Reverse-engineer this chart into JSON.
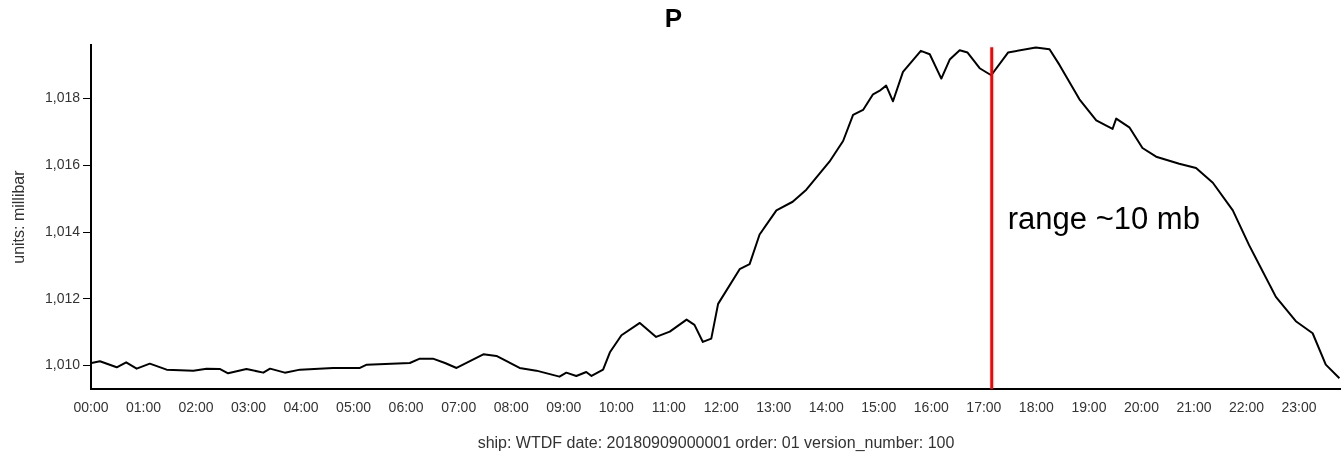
{
  "chart_data": {
    "type": "line",
    "title": "P",
    "xlabel": "ship: WTDF date: 20180909000001 order: 01 version_number: 100",
    "ylabel": "units: millibar",
    "x": [
      0.01,
      0.17,
      0.49,
      0.67,
      0.87,
      1.12,
      1.44,
      1.95,
      2.2,
      2.45,
      2.61,
      2.96,
      3.28,
      3.41,
      3.69,
      3.98,
      4.61,
      5.12,
      5.25,
      6.07,
      6.26,
      6.51,
      6.74,
      6.96,
      7.47,
      7.72,
      8.16,
      8.48,
      8.92,
      9.05,
      9.24,
      9.43,
      9.53,
      9.75,
      9.88,
      10.1,
      10.45,
      10.76,
      11.02,
      11.34,
      11.49,
      11.65,
      11.81,
      11.94,
      12.35,
      12.54,
      12.73,
      13.05,
      13.36,
      13.62,
      14.06,
      14.32,
      14.51,
      14.7,
      14.89,
      15.01,
      15.14,
      15.27,
      15.46,
      15.8,
      15.97,
      16.19,
      16.35,
      16.54,
      16.69,
      16.92,
      17.14,
      17.46,
      17.99,
      18.25,
      18.44,
      18.82,
      19.14,
      19.45,
      19.52,
      19.77,
      20.02,
      20.28,
      20.72,
      21.04,
      21.36,
      21.74,
      22.05,
      22.56,
      22.94,
      23.26,
      23.51,
      23.77
    ],
    "series": [
      {
        "color": "#000000",
        "values": [
          1010.08,
          1010.13,
          1009.95,
          1010.1,
          1009.91,
          1010.06,
          1009.88,
          1009.85,
          1009.91,
          1009.9,
          1009.77,
          1009.9,
          1009.79,
          1009.91,
          1009.79,
          1009.88,
          1009.93,
          1009.93,
          1010.03,
          1010.08,
          1010.21,
          1010.21,
          1010.08,
          1009.93,
          1010.34,
          1010.29,
          1009.93,
          1009.85,
          1009.67,
          1009.79,
          1009.69,
          1009.81,
          1009.69,
          1009.88,
          1010.4,
          1010.91,
          1011.28,
          1010.86,
          1011.02,
          1011.38,
          1011.22,
          1010.71,
          1010.81,
          1011.85,
          1012.89,
          1013.04,
          1013.93,
          1014.65,
          1014.91,
          1015.27,
          1016.11,
          1016.73,
          1017.51,
          1017.66,
          1018.13,
          1018.23,
          1018.39,
          1017.92,
          1018.8,
          1019.43,
          1019.33,
          1018.6,
          1019.17,
          1019.45,
          1019.38,
          1018.91,
          1018.7,
          1019.38,
          1019.53,
          1019.48,
          1019.01,
          1017.98,
          1017.35,
          1017.09,
          1017.4,
          1017.14,
          1016.52,
          1016.26,
          1016.05,
          1015.92,
          1015.48,
          1014.65,
          1013.61,
          1012.06,
          1011.33,
          1010.97,
          1010.03,
          1009.62
        ]
      }
    ],
    "xlim": [
      0,
      23.8
    ],
    "xticks": [
      {
        "value": 0,
        "label": "00:00"
      },
      {
        "value": 1,
        "label": "01:00"
      },
      {
        "value": 2,
        "label": "02:00"
      },
      {
        "value": 3,
        "label": "03:00"
      },
      {
        "value": 4,
        "label": "04:00"
      },
      {
        "value": 5,
        "label": "05:00"
      },
      {
        "value": 6,
        "label": "06:00"
      },
      {
        "value": 7,
        "label": "07:00"
      },
      {
        "value": 8,
        "label": "08:00"
      },
      {
        "value": 9,
        "label": "09:00"
      },
      {
        "value": 10,
        "label": "10:00"
      },
      {
        "value": 11,
        "label": "11:00"
      },
      {
        "value": 12,
        "label": "12:00"
      },
      {
        "value": 13,
        "label": "13:00"
      },
      {
        "value": 14,
        "label": "14:00"
      },
      {
        "value": 15,
        "label": "15:00"
      },
      {
        "value": 16,
        "label": "16:00"
      },
      {
        "value": 17,
        "label": "17:00"
      },
      {
        "value": 18,
        "label": "18:00"
      },
      {
        "value": 19,
        "label": "19:00"
      },
      {
        "value": 20,
        "label": "20:00"
      },
      {
        "value": 21,
        "label": "21:00"
      },
      {
        "value": 22,
        "label": "22:00"
      },
      {
        "value": 23,
        "label": "23:00"
      }
    ],
    "ylim": [
      1009.3,
      1019.6
    ],
    "yticks": [
      {
        "value": 1010,
        "label": "1,010"
      },
      {
        "value": 1012,
        "label": "1,012"
      },
      {
        "value": 1014,
        "label": "1,014"
      },
      {
        "value": 1016,
        "label": "1,016"
      },
      {
        "value": 1018,
        "label": "1,018"
      }
    ],
    "ref_lines": [
      {
        "axis": "x",
        "value": 17.15,
        "label": "range ~10 mb",
        "color": "#ff0000"
      }
    ],
    "grid": false,
    "legend": false,
    "marker": "none",
    "line_style": "solid"
  }
}
